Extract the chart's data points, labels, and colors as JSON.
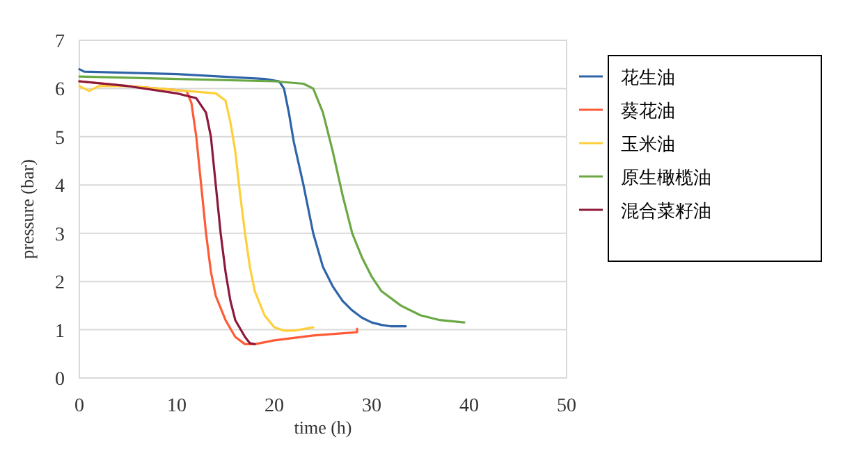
{
  "chart_data": {
    "type": "line",
    "xlabel": "time (h)",
    "ylabel": "pressure (bar)",
    "xlim": [
      0,
      50
    ],
    "ylim": [
      0,
      7
    ],
    "xticks": [
      0,
      10,
      20,
      30,
      40,
      50
    ],
    "yticks": [
      0,
      1,
      2,
      3,
      4,
      5,
      6,
      7
    ],
    "grid": "y",
    "legend": "right",
    "marker": "none",
    "line_style": "solid",
    "series": [
      {
        "name": "花生油",
        "color": "#2f64a8",
        "x": [
          0,
          0.5,
          10,
          19,
          20.5,
          21,
          21.5,
          22,
          23,
          24,
          25,
          26,
          27,
          28,
          29,
          30,
          31,
          32,
          33.5
        ],
        "values": [
          6.4,
          6.35,
          6.3,
          6.2,
          6.15,
          6.0,
          5.5,
          4.9,
          4.0,
          3.0,
          2.3,
          1.9,
          1.6,
          1.4,
          1.25,
          1.15,
          1.1,
          1.07,
          1.07
        ]
      },
      {
        "name": "葵花油",
        "color": "#ff5a36",
        "x": [
          0,
          5,
          11,
          11.5,
          12,
          12.5,
          13,
          13.5,
          14,
          15,
          16,
          17,
          18,
          20,
          24,
          28.5,
          28.5
        ],
        "values": [
          6.15,
          6.05,
          5.95,
          5.7,
          5.0,
          4.0,
          3.0,
          2.2,
          1.7,
          1.2,
          0.85,
          0.7,
          0.7,
          0.78,
          0.88,
          0.95,
          1.02
        ]
      },
      {
        "name": "玉米油",
        "color": "#ffcf3a",
        "x": [
          0,
          1,
          2,
          5,
          11,
          14,
          15,
          15.5,
          16,
          16.5,
          17,
          17.5,
          18,
          19,
          20,
          21,
          22,
          24
        ],
        "values": [
          6.05,
          5.95,
          6.05,
          6.05,
          5.95,
          5.9,
          5.75,
          5.3,
          4.7,
          3.8,
          3.0,
          2.3,
          1.8,
          1.3,
          1.05,
          0.98,
          0.98,
          1.05
        ]
      },
      {
        "name": "原生橄榄油",
        "color": "#6aa843",
        "x": [
          0,
          10,
          20,
          23,
          24,
          25,
          25.5,
          26,
          27,
          28,
          29,
          30,
          31,
          33,
          35,
          37,
          39.5
        ],
        "values": [
          6.25,
          6.2,
          6.15,
          6.1,
          6.0,
          5.5,
          5.1,
          4.7,
          3.8,
          3.0,
          2.5,
          2.1,
          1.8,
          1.5,
          1.3,
          1.2,
          1.15
        ]
      },
      {
        "name": "混合菜籽油",
        "color": "#8c1a3a",
        "x": [
          0,
          5,
          10,
          12,
          13,
          13.5,
          14,
          14.5,
          15,
          15.5,
          16,
          17,
          17.5,
          18
        ],
        "values": [
          6.15,
          6.05,
          5.9,
          5.8,
          5.5,
          5.0,
          4.0,
          3.0,
          2.2,
          1.6,
          1.2,
          0.85,
          0.72,
          0.7
        ]
      }
    ]
  }
}
